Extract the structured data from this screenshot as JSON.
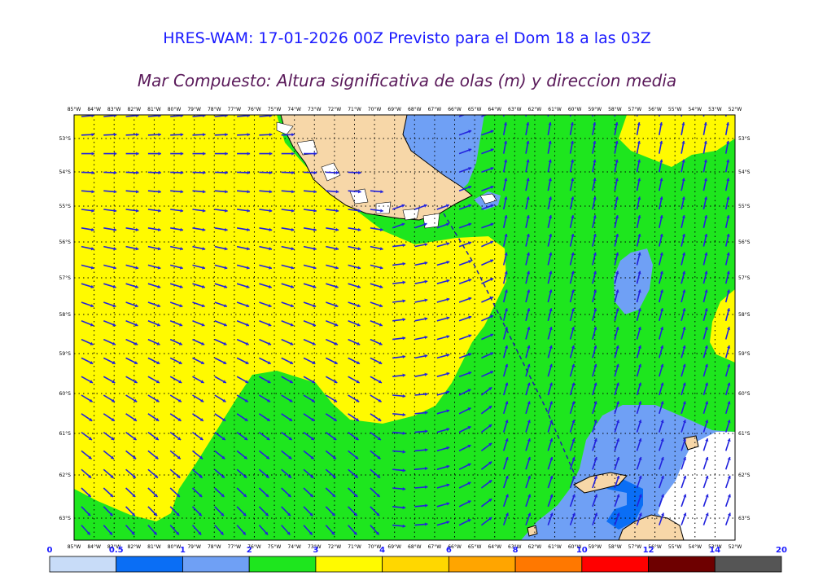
{
  "header": {
    "title": "HRES-WAM: 17-01-2026 00Z Previsto para el Dom 18 a las 03Z",
    "subtitle": "Mar Compuesto: Altura significativa de olas (m) y direccion media"
  },
  "map": {
    "longitudes": [
      "85°W",
      "84°W",
      "83°W",
      "82°W",
      "81°W",
      "80°W",
      "79°W",
      "78°W",
      "77°W",
      "76°W",
      "75°W",
      "74°W",
      "73°W",
      "72°W",
      "71°W",
      "70°W",
      "69°W",
      "68°W",
      "67°W",
      "66°W",
      "65°W",
      "64°W",
      "63°W",
      "62°W",
      "61°W",
      "60°W",
      "59°W",
      "58°W",
      "57°W",
      "56°W",
      "55°W",
      "54°W",
      "53°W",
      "52°W"
    ],
    "latitudes": [
      "53°S",
      "54°S",
      "55°S",
      "56°S",
      "57°S",
      "58°S",
      "59°S",
      "60°S",
      "61°S",
      "62°S",
      "63°S"
    ],
    "arrow_color": "#2222dd",
    "land_color": "#f7d7a8",
    "route_color": "#2222aa"
  },
  "legend": {
    "ticks": [
      "0",
      "0.5",
      "1",
      "2",
      "3",
      "4",
      "6",
      "8",
      "10",
      "12",
      "14",
      "20"
    ],
    "colors": [
      "#c8dcf8",
      "#0a6ef5",
      "#6fa0f5",
      "#1ee61e",
      "#fffa00",
      "#ffd700",
      "#ffa500",
      "#ff7800",
      "#ff0000",
      "#6e0000",
      "#555555"
    ]
  }
}
